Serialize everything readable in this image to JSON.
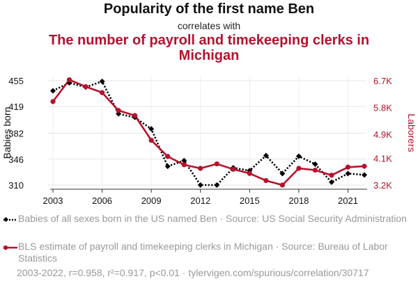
{
  "header": {
    "title": "Popularity of the first name Ben",
    "subtitle": "correlates with",
    "title2": "The number of payroll and timekeeping clerks in Michigan"
  },
  "chart_data": {
    "type": "line",
    "x": [
      2003,
      2004,
      2005,
      2006,
      2007,
      2008,
      2009,
      2010,
      2011,
      2012,
      2013,
      2014,
      2015,
      2016,
      2017,
      2018,
      2019,
      2020,
      2021,
      2022
    ],
    "x_ticks": [
      2003,
      2006,
      2009,
      2012,
      2015,
      2018,
      2021
    ],
    "xlim": [
      2003,
      2022
    ],
    "y_left": {
      "label": "Babies born",
      "ticks": [
        310,
        346,
        382,
        419,
        455
      ],
      "tick_labels": [
        "310",
        "346",
        "382",
        "419",
        "455"
      ],
      "ylim": [
        310,
        455
      ]
    },
    "y_right": {
      "label": "Laborers",
      "ticks": [
        3200,
        4100,
        4900,
        5800,
        6700
      ],
      "tick_labels": [
        "3.2K",
        "4.1K",
        "4.9K",
        "5.8K",
        "6.7K"
      ],
      "ylim": [
        3200,
        6700
      ]
    },
    "series": [
      {
        "name": "Babies of all sexes born in the US named Ben · Source: US Social Security Administration",
        "axis": "left",
        "color": "#000000",
        "style": "dotted",
        "marker": "diamond",
        "values": [
          441,
          452,
          446,
          454,
          409,
          404,
          388,
          336,
          344,
          310,
          310,
          334,
          330,
          351,
          326,
          350,
          339,
          314,
          326,
          324
        ]
      },
      {
        "name": "BLS estimate of payroll and timekeeping clerks in Michigan · Source: Bureau of Labor Statistics",
        "axis": "right",
        "color": "#b5122d",
        "style": "solid",
        "marker": "circle",
        "values": [
          6000,
          6730,
          6500,
          6300,
          5700,
          5530,
          4700,
          4160,
          3880,
          3760,
          3910,
          3730,
          3590,
          3350,
          3200,
          3760,
          3700,
          3530,
          3800,
          3830
        ]
      }
    ],
    "grid": true,
    "legend_position": "bottom"
  },
  "footer": {
    "text": "2003-2022, r=0.958, r²=0.917, p<0.01 · tylervigen.com/spurious/correlation/30717"
  }
}
